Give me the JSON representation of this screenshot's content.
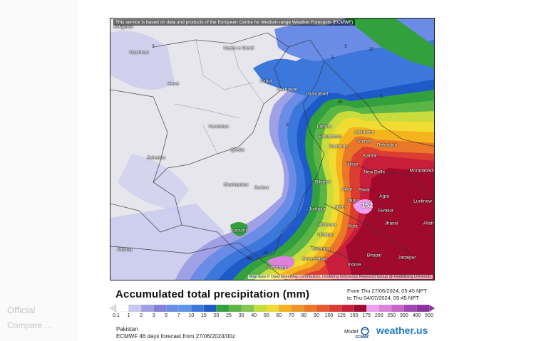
{
  "map": {
    "disclaimer": "This service is based on data and products of the European Centre for Medium-range Weather Forecasts (ECMWF)",
    "attribution": "Map data © OpenStreetMap contributors, rendering GIScience Research Group @ Heidelberg University",
    "max_value": "152",
    "contour_labels": [
      "5",
      "5",
      "5",
      "20",
      "40",
      "40",
      "40",
      "5",
      "5"
    ],
    "cities": [
      {
        "name": "Ashgabat"
      },
      {
        "name": "Mashhad"
      },
      {
        "name": "Mazar-e Sharif"
      },
      {
        "name": "Herat"
      },
      {
        "name": "Kabul"
      },
      {
        "name": "Peshawar"
      },
      {
        "name": "Islamabad"
      },
      {
        "name": "Kandahar"
      },
      {
        "name": "Lahore"
      },
      {
        "name": "Faisalabad"
      },
      {
        "name": "Jalandhar"
      },
      {
        "name": "Shimla"
      },
      {
        "name": "Dehradun"
      },
      {
        "name": "Bathinda"
      },
      {
        "name": "Karnal"
      },
      {
        "name": "Quetta"
      },
      {
        "name": "Zahedan"
      },
      {
        "name": "Hisar"
      },
      {
        "name": "New Delhi"
      },
      {
        "name": "Moradabad"
      },
      {
        "name": "Bikaner"
      },
      {
        "name": "Shahdadkot"
      },
      {
        "name": "Sukkur"
      },
      {
        "name": "Sikar"
      },
      {
        "name": "Alwar"
      },
      {
        "name": "Jaipur"
      },
      {
        "name": "Agra"
      },
      {
        "name": "Lucknow"
      },
      {
        "name": "Gwalior"
      },
      {
        "name": "Jodhpur"
      },
      {
        "name": "Ajmer"
      },
      {
        "name": "Jhansi"
      },
      {
        "name": "Allah"
      },
      {
        "name": "Bhilwara"
      },
      {
        "name": "Kota"
      },
      {
        "name": "Karachi"
      },
      {
        "name": "Udaipur"
      },
      {
        "name": "Palanpur"
      },
      {
        "name": "Ahmedabad"
      },
      {
        "name": "Bhopal"
      },
      {
        "name": "Jabalpur"
      },
      {
        "name": "Muscat"
      },
      {
        "name": "Jamnagar"
      },
      {
        "name": "Indore"
      }
    ]
  },
  "title": "Accumulated total precipitation (mm)",
  "period": {
    "from": "From Thu 27/06/2024, 05:45 NPT",
    "to": "to Thu 04/07/2024, 05:45 NPT"
  },
  "scale": {
    "labels": [
      "0.1",
      "1",
      "2",
      "3",
      "5",
      "7",
      "10",
      "15",
      "20",
      "25",
      "30",
      "40",
      "50",
      "60",
      "70",
      "80",
      "90",
      "100",
      "125",
      "150",
      "175",
      "200",
      "250",
      "300",
      "400",
      "500"
    ],
    "colors": [
      "#ffffff",
      "#c8c8f0",
      "#a0a0e6",
      "#8282dc",
      "#6a8ce6",
      "#5a96ec",
      "#3c78dc",
      "#1e5ac8",
      "#32a03c",
      "#5ab446",
      "#82c850",
      "#c8dc3c",
      "#f0dc32",
      "#f5b41e",
      "#f09628",
      "#eb7828",
      "#e65a2d",
      "#dc3c32",
      "#c81e3c",
      "#a00a2d",
      "#f0a0f0",
      "#dc82dc",
      "#c864c8",
      "#a046b4",
      "#8c32a0"
    ]
  },
  "region": "Pakistan",
  "forecast": "ECMWF 46 days forecast from  27/06/2024/00z",
  "model_label": "Model:",
  "ecmwf_label": "ECMWF",
  "brand": "weather.us",
  "ghost": [
    "Official",
    "Compare ..."
  ]
}
